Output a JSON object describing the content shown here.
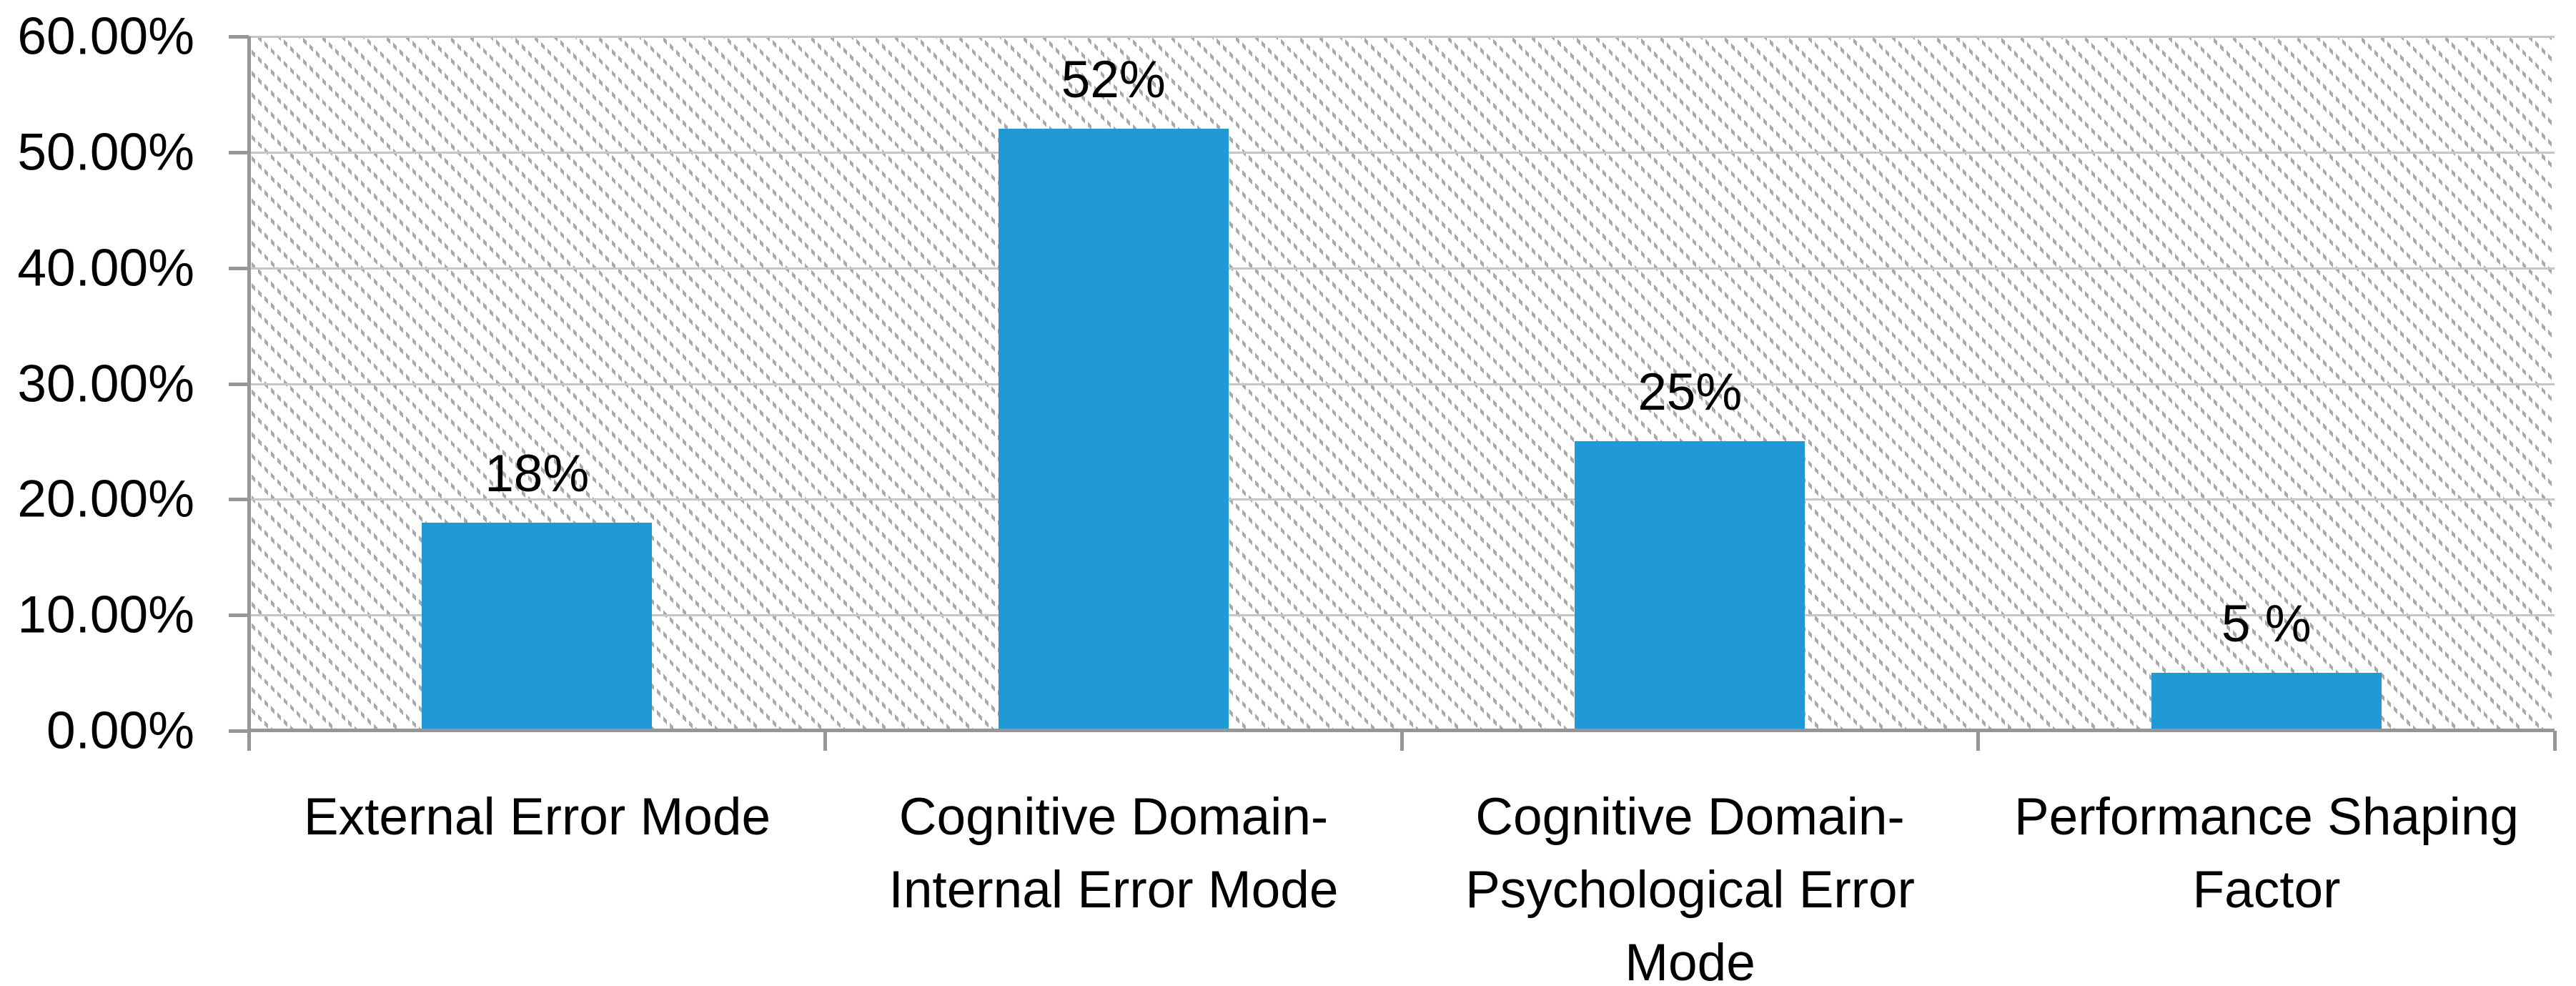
{
  "chart_data": {
    "type": "bar",
    "title": "",
    "xlabel": "",
    "ylabel": "",
    "categories": [
      "External Error Mode",
      "Cognitive Domain-Internal Error Mode",
      "Cognitive Domain-Psychological Error Mode",
      "Performance Shaping Factor"
    ],
    "category_label_lines": [
      [
        "External Error Mode"
      ],
      [
        "Cognitive Domain-",
        "Internal Error Mode"
      ],
      [
        "Cognitive Domain-",
        "Psychological Error",
        "Mode"
      ],
      [
        "Performance Shaping",
        "Factor"
      ]
    ],
    "values": [
      18,
      52,
      25,
      5
    ],
    "data_labels": [
      "18%",
      "52%",
      "25%",
      "5 %"
    ],
    "y_tick_labels": [
      "60.00%",
      "50.00%",
      "40.00%",
      "30.00%",
      "20.00%",
      "10.00%",
      "0.00%"
    ],
    "ylim": [
      0,
      60
    ],
    "grid": true,
    "legend_position": "none",
    "plot_background": "hatched-light-downward-diagonal",
    "colors": {
      "bar": "#2099d6",
      "gridline": "#c6c6c6",
      "axis": "#969696",
      "hatch": "#a9a9a9",
      "text": "#000000",
      "background": "#ffffff"
    }
  }
}
